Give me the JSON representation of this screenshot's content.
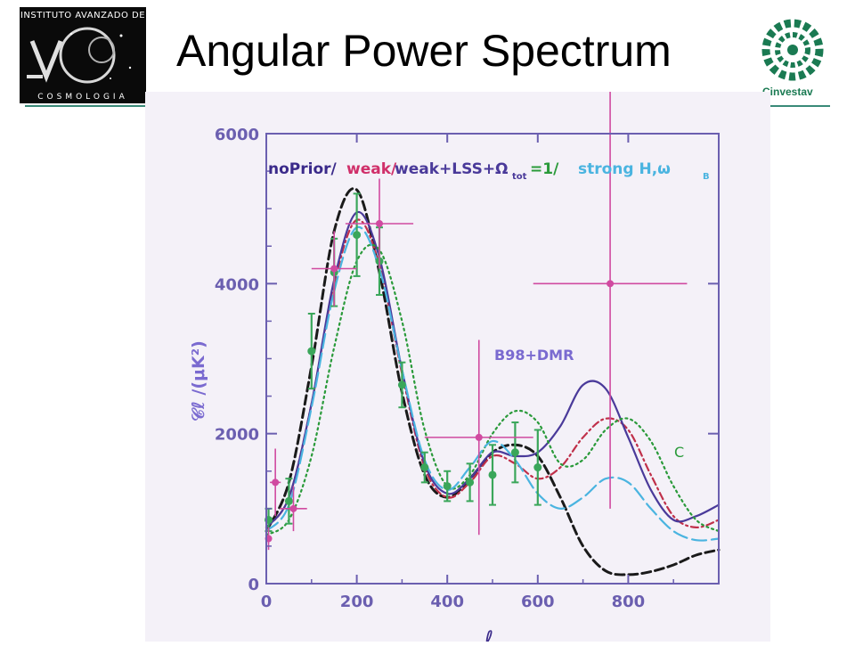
{
  "slide": {
    "title": "Angular Power Spectrum",
    "left_logo": {
      "top_text": "INSTITUTO AVANZADO DE",
      "bottom_text": "COSMOLOGIA",
      "icon": "iac-logo-icon"
    },
    "right_logo": {
      "brand": "Cinvestav",
      "icon": "cinvestav-logo-icon"
    }
  },
  "colors": {
    "axis": "#6b5fb0",
    "noPrior": "#1a1a1a",
    "weak": "#c0304a",
    "weak_lss": "#4a3a9a",
    "omega": "#2a9a3a",
    "strong": "#4ab4e0",
    "boomerang": "#3aa65a",
    "b98dmr": "#d04aa0"
  },
  "chart_data": {
    "type": "line",
    "xlabel": "ℓ",
    "ylabel": "𝒞ℓ /(μK²)",
    "xlim": [
      0,
      1000
    ],
    "ylim": [
      0,
      6000
    ],
    "x_ticks": [
      "0",
      "200",
      "400",
      "600",
      "800"
    ],
    "y_ticks": [
      "0",
      "2000",
      "4000",
      "6000"
    ],
    "legend": {
      "parts": [
        "noPrior/",
        "weak/",
        "weak+LSS+Ω",
        "tot",
        "=1/",
        "strong H,ω",
        "B"
      ]
    },
    "annotations": [
      "B98+DMR",
      "C"
    ],
    "series": [
      {
        "name": "noPrior",
        "style": "dashed",
        "x": [
          0,
          50,
          100,
          150,
          200,
          250,
          300,
          350,
          400,
          450,
          500,
          550,
          600,
          650,
          700,
          750,
          800,
          850,
          900,
          950,
          1000
        ],
        "y": [
          700,
          1350,
          2900,
          4700,
          5250,
          4150,
          2550,
          1450,
          1150,
          1400,
          1750,
          1850,
          1700,
          1150,
          500,
          170,
          120,
          160,
          250,
          380,
          450
        ]
      },
      {
        "name": "weak",
        "style": "dashdot",
        "x": [
          0,
          50,
          100,
          150,
          200,
          250,
          300,
          350,
          400,
          450,
          500,
          550,
          600,
          650,
          700,
          750,
          800,
          850,
          900,
          950,
          1000
        ],
        "y": [
          750,
          1150,
          2400,
          4000,
          4850,
          4250,
          2800,
          1550,
          1150,
          1350,
          1700,
          1600,
          1400,
          1550,
          1950,
          2200,
          2050,
          1450,
          900,
          750,
          850
        ]
      },
      {
        "name": "weak+LSS+Ωtot=1",
        "style": "solid",
        "x": [
          0,
          50,
          100,
          150,
          200,
          250,
          300,
          350,
          400,
          450,
          500,
          550,
          600,
          650,
          700,
          750,
          800,
          850,
          900,
          950,
          1000
        ],
        "y": [
          750,
          1150,
          2400,
          4050,
          4950,
          4350,
          2850,
          1600,
          1200,
          1400,
          1750,
          1700,
          1750,
          2100,
          2650,
          2600,
          1950,
          1250,
          850,
          900,
          1050
        ]
      },
      {
        "name": "Ωtot=1",
        "style": "dotted",
        "x": [
          0,
          50,
          100,
          150,
          200,
          250,
          300,
          350,
          400,
          450,
          500,
          550,
          600,
          650,
          700,
          750,
          800,
          850,
          900,
          950,
          1000
        ],
        "y": [
          650,
          850,
          1700,
          3150,
          4300,
          4450,
          3500,
          2050,
          1300,
          1450,
          2000,
          2300,
          2150,
          1600,
          1650,
          2050,
          2200,
          1900,
          1300,
          850,
          700
        ]
      },
      {
        "name": "strong H,ωB",
        "style": "longdash",
        "x": [
          0,
          50,
          100,
          150,
          200,
          250,
          300,
          350,
          400,
          450,
          500,
          550,
          600,
          650,
          700,
          750,
          800,
          850,
          900,
          950,
          1000
        ],
        "y": [
          700,
          1050,
          2350,
          3900,
          4750,
          4200,
          2850,
          1650,
          1250,
          1550,
          1900,
          1650,
          1200,
          1000,
          1150,
          1400,
          1350,
          1000,
          700,
          580,
          600
        ]
      }
    ],
    "points_boomerang": [
      {
        "x": 5,
        "y": 850,
        "yerr": 150
      },
      {
        "x": 50,
        "y": 1100,
        "yerr": 300
      },
      {
        "x": 100,
        "y": 3100,
        "yerr": 500
      },
      {
        "x": 150,
        "y": 4150,
        "yerr": 450
      },
      {
        "x": 200,
        "y": 4650,
        "yerr": 550
      },
      {
        "x": 250,
        "y": 4300,
        "yerr": 450
      },
      {
        "x": 300,
        "y": 2650,
        "yerr": 300
      },
      {
        "x": 350,
        "y": 1550,
        "yerr": 200
      },
      {
        "x": 400,
        "y": 1300,
        "yerr": 200
      },
      {
        "x": 450,
        "y": 1350,
        "yerr": 250
      },
      {
        "x": 500,
        "y": 1450,
        "yerr": 400
      },
      {
        "x": 550,
        "y": 1750,
        "yerr": 400
      },
      {
        "x": 600,
        "y": 1550,
        "yerr": 500
      }
    ],
    "points_b98dmr": [
      {
        "x": 5,
        "y": 600,
        "yerr": 150,
        "xerr": 3
      },
      {
        "x": 20,
        "y": 1350,
        "yerr": 450,
        "xerr": 12
      },
      {
        "x": 60,
        "y": 1000,
        "yerr": 300,
        "xerr": 30
      },
      {
        "x": 150,
        "y": 4200,
        "yerr": 500,
        "xerr": 50
      },
      {
        "x": 250,
        "y": 4800,
        "yerr": 600,
        "xerr": 75
      },
      {
        "x": 470,
        "y": 1950,
        "yerr": 1300,
        "xerr": 120
      },
      {
        "x": 760,
        "y": 4000,
        "yerr": 3000,
        "xerr": 170
      }
    ]
  }
}
